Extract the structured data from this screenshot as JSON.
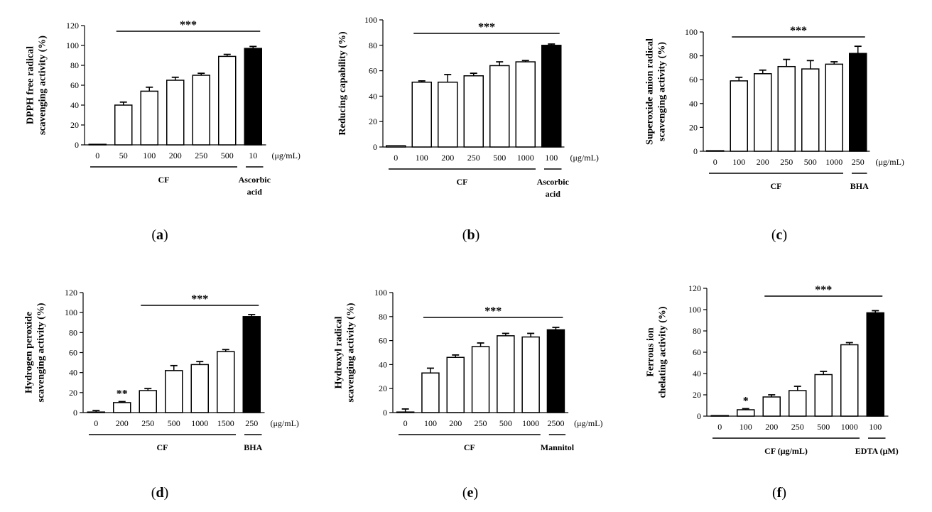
{
  "figure": {
    "title": ""
  },
  "chart_data": [
    {
      "id": "a",
      "type": "bar",
      "panel_label": "a",
      "ylabel": [
        "DPPH free radical",
        "scavenging activity (%)"
      ],
      "ylim": [
        0,
        120
      ],
      "yticks": [
        0,
        20,
        40,
        60,
        80,
        100,
        120
      ],
      "categories": [
        "0",
        "50",
        "100",
        "200",
        "250",
        "500",
        "10"
      ],
      "values": [
        0,
        40,
        54,
        65,
        70,
        89,
        97
      ],
      "errors": [
        0,
        3,
        4,
        3,
        2,
        2,
        2
      ],
      "fills": [
        "white",
        "white",
        "white",
        "white",
        "white",
        "white",
        "black"
      ],
      "unit": "(μg/mL)",
      "groups": [
        {
          "label": [
            "CF"
          ],
          "from": 0,
          "to": 5
        },
        {
          "label": [
            "Ascorbic",
            "acid"
          ],
          "from": 6,
          "to": 6
        }
      ],
      "significance": [
        {
          "text": "***",
          "from": 1,
          "to": 6
        }
      ],
      "bar_marks": []
    },
    {
      "id": "b",
      "type": "bar",
      "panel_label": "b",
      "ylabel": [
        "Reducing capability (%)"
      ],
      "ylim": [
        0,
        100
      ],
      "yticks": [
        0,
        20,
        40,
        60,
        80,
        100
      ],
      "categories": [
        "0",
        "100",
        "200",
        "250",
        "500",
        "1000",
        "100"
      ],
      "values": [
        1,
        51,
        51,
        56,
        64,
        67,
        80
      ],
      "errors": [
        0,
        1,
        6,
        2,
        3,
        1,
        1
      ],
      "fills": [
        "white",
        "white",
        "white",
        "white",
        "white",
        "white",
        "black"
      ],
      "unit": "(μg/mL)",
      "groups": [
        {
          "label": [
            "CF"
          ],
          "from": 0,
          "to": 5
        },
        {
          "label": [
            "Ascorbic",
            "acid"
          ],
          "from": 6,
          "to": 6
        }
      ],
      "significance": [
        {
          "text": "***",
          "from": 1,
          "to": 6
        }
      ],
      "bar_marks": []
    },
    {
      "id": "c",
      "type": "bar",
      "panel_label": "c",
      "ylabel": [
        "Superoxide anion radical",
        "scavenging activity (%)"
      ],
      "ylim": [
        0,
        100
      ],
      "yticks": [
        0,
        20,
        40,
        60,
        80,
        100
      ],
      "categories": [
        "0",
        "100",
        "200",
        "250",
        "500",
        "1000",
        "250"
      ],
      "values": [
        0,
        59,
        65,
        71,
        69,
        73,
        82
      ],
      "errors": [
        0,
        3,
        3,
        6,
        7,
        2,
        6
      ],
      "fills": [
        "white",
        "white",
        "white",
        "white",
        "white",
        "white",
        "black"
      ],
      "unit": "(μg/mL)",
      "groups": [
        {
          "label": [
            "CF"
          ],
          "from": 0,
          "to": 5
        },
        {
          "label": [
            "BHA"
          ],
          "from": 6,
          "to": 6
        }
      ],
      "significance": [
        {
          "text": "***",
          "from": 1,
          "to": 6
        }
      ],
      "bar_marks": []
    },
    {
      "id": "d",
      "type": "bar",
      "panel_label": "d",
      "ylabel": [
        "Hydrogen peroxide",
        "scavenging activity (%)"
      ],
      "ylim": [
        0,
        120
      ],
      "yticks": [
        0,
        20,
        40,
        60,
        80,
        100,
        120
      ],
      "categories": [
        "0",
        "200",
        "250",
        "500",
        "1000",
        "1500",
        "250"
      ],
      "values": [
        0,
        10,
        22,
        42,
        48,
        61,
        96
      ],
      "errors": [
        2,
        1,
        2,
        5,
        3,
        2,
        2
      ],
      "fills": [
        "white",
        "white",
        "white",
        "white",
        "white",
        "white",
        "black"
      ],
      "unit": "(μg/mL)",
      "groups": [
        {
          "label": [
            "CF"
          ],
          "from": 0,
          "to": 5
        },
        {
          "label": [
            "BHA"
          ],
          "from": 6,
          "to": 6
        }
      ],
      "significance": [
        {
          "text": "***",
          "from": 2,
          "to": 6
        }
      ],
      "bar_marks": [
        {
          "index": 1,
          "text": "**"
        }
      ]
    },
    {
      "id": "e",
      "type": "bar",
      "panel_label": "e",
      "ylabel": [
        "Hydroxyl radical",
        "scavenging activity (%)"
      ],
      "ylim": [
        0,
        100
      ],
      "yticks": [
        0,
        20,
        40,
        60,
        80,
        100
      ],
      "categories": [
        "0",
        "100",
        "200",
        "250",
        "500",
        "1000",
        "2500"
      ],
      "values": [
        0,
        33,
        46,
        55,
        64,
        63,
        69
      ],
      "errors": [
        3,
        4,
        2,
        3,
        2,
        3,
        2
      ],
      "fills": [
        "white",
        "white",
        "white",
        "white",
        "white",
        "white",
        "black"
      ],
      "unit": "(μg/mL)",
      "groups": [
        {
          "label": [
            "CF"
          ],
          "from": 0,
          "to": 5
        },
        {
          "label": [
            "Mannitol"
          ],
          "from": 6,
          "to": 6
        }
      ],
      "significance": [
        {
          "text": "***",
          "from": 1,
          "to": 6
        }
      ],
      "bar_marks": []
    },
    {
      "id": "f",
      "type": "bar",
      "panel_label": "f",
      "ylabel": [
        "Ferrous ion",
        "chelating activity (%)"
      ],
      "ylim": [
        0,
        120
      ],
      "yticks": [
        0,
        20,
        40,
        60,
        80,
        100,
        120
      ],
      "categories": [
        "0",
        "100",
        "200",
        "250",
        "500",
        "1000",
        "100"
      ],
      "values": [
        0,
        6,
        18,
        24,
        39,
        67,
        97
      ],
      "errors": [
        0,
        1,
        2,
        4,
        3,
        2,
        2
      ],
      "fills": [
        "white",
        "white",
        "white",
        "white",
        "white",
        "white",
        "black"
      ],
      "unit": "",
      "groups": [
        {
          "label": [
            "CF (μg/mL)"
          ],
          "from": 0,
          "to": 5
        },
        {
          "label": [
            "EDTA (μM)"
          ],
          "from": 6,
          "to": 6
        }
      ],
      "significance": [
        {
          "text": "***",
          "from": 2,
          "to": 6
        }
      ],
      "bar_marks": [
        {
          "index": 1,
          "text": "*"
        }
      ]
    }
  ]
}
